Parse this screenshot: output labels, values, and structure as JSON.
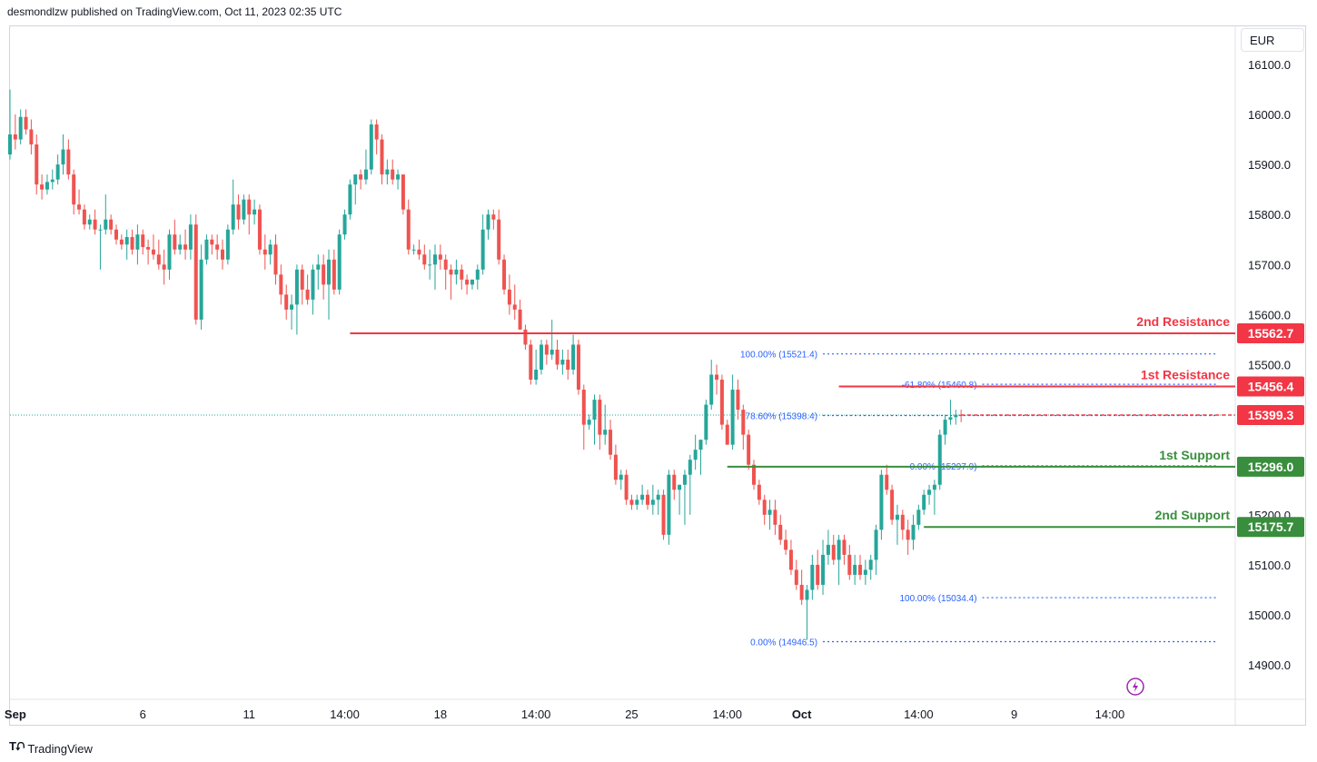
{
  "header": {
    "text": "desmondlzw published on TradingView.com, Oct 11, 2023 02:35 UTC"
  },
  "footer": {
    "brand": "TradingView"
  },
  "currency": "EUR",
  "colors": {
    "up": "#26a69a",
    "down": "#ef5350",
    "resistance": "#f23645",
    "support": "#388e3c",
    "fib": "#2962ff",
    "current": "#f23645"
  },
  "chart_data": {
    "type": "candlestick",
    "ylim": [
      14840,
      16150
    ],
    "y_ticks": [
      14900.0,
      15000.0,
      15100.0,
      15200.0,
      15300.0,
      15400.0,
      15500.0,
      15600.0,
      15700.0,
      15800.0,
      15900.0,
      16000.0,
      16100.0
    ],
    "x_ticks": [
      {
        "label": "Sep",
        "bar": 1
      },
      {
        "label": "6",
        "bar": 25
      },
      {
        "label": "11",
        "bar": 45
      },
      {
        "label": "14:00",
        "bar": 63
      },
      {
        "label": "18",
        "bar": 81
      },
      {
        "label": "14:00",
        "bar": 99
      },
      {
        "label": "25",
        "bar": 117
      },
      {
        "label": "14:00",
        "bar": 135
      },
      {
        "label": "Oct",
        "bar": 149
      },
      {
        "label": "14:00",
        "bar": 171
      },
      {
        "label": "9",
        "bar": 189
      },
      {
        "label": "14:00",
        "bar": 207
      }
    ],
    "candles": [
      [
        15920,
        16050,
        15910,
        15960
      ],
      [
        15960,
        16000,
        15930,
        15950
      ],
      [
        15950,
        16010,
        15940,
        15995
      ],
      [
        15995,
        16010,
        15960,
        15970
      ],
      [
        15970,
        15990,
        15920,
        15940
      ],
      [
        15940,
        15960,
        15840,
        15860
      ],
      [
        15860,
        15880,
        15830,
        15850
      ],
      [
        15850,
        15880,
        15840,
        15865
      ],
      [
        15865,
        15890,
        15850,
        15870
      ],
      [
        15870,
        15920,
        15860,
        15900
      ],
      [
        15900,
        15960,
        15880,
        15930
      ],
      [
        15930,
        15950,
        15870,
        15880
      ],
      [
        15880,
        15890,
        15800,
        15820
      ],
      [
        15820,
        15850,
        15800,
        15810
      ],
      [
        15810,
        15820,
        15770,
        15780
      ],
      [
        15780,
        15800,
        15770,
        15790
      ],
      [
        15790,
        15810,
        15760,
        15770
      ],
      [
        15770,
        15780,
        15690,
        15770
      ],
      [
        15770,
        15840,
        15760,
        15790
      ],
      [
        15790,
        15800,
        15760,
        15770
      ],
      [
        15770,
        15780,
        15740,
        15750
      ],
      [
        15750,
        15760,
        15730,
        15740
      ],
      [
        15740,
        15770,
        15710,
        15755
      ],
      [
        15755,
        15770,
        15720,
        15730
      ],
      [
        15730,
        15780,
        15700,
        15760
      ],
      [
        15760,
        15770,
        15720,
        15735
      ],
      [
        15735,
        15750,
        15700,
        15730
      ],
      [
        15730,
        15760,
        15710,
        15720
      ],
      [
        15720,
        15750,
        15690,
        15700
      ],
      [
        15700,
        15730,
        15660,
        15690
      ],
      [
        15690,
        15770,
        15670,
        15760
      ],
      [
        15760,
        15790,
        15720,
        15730
      ],
      [
        15730,
        15760,
        15720,
        15740
      ],
      [
        15740,
        15770,
        15710,
        15730
      ],
      [
        15730,
        15800,
        15710,
        15780
      ],
      [
        15780,
        15800,
        15580,
        15590
      ],
      [
        15590,
        15740,
        15570,
        15710
      ],
      [
        15710,
        15760,
        15700,
        15750
      ],
      [
        15750,
        15760,
        15720,
        15740
      ],
      [
        15740,
        15760,
        15710,
        15730
      ],
      [
        15730,
        15750,
        15690,
        15710
      ],
      [
        15710,
        15780,
        15700,
        15770
      ],
      [
        15770,
        15870,
        15760,
        15820
      ],
      [
        15820,
        15840,
        15770,
        15790
      ],
      [
        15790,
        15840,
        15780,
        15830
      ],
      [
        15830,
        15840,
        15760,
        15800
      ],
      [
        15800,
        15830,
        15780,
        15810
      ],
      [
        15810,
        15820,
        15720,
        15730
      ],
      [
        15730,
        15760,
        15690,
        15720
      ],
      [
        15720,
        15750,
        15700,
        15740
      ],
      [
        15740,
        15760,
        15660,
        15680
      ],
      [
        15680,
        15700,
        15620,
        15640
      ],
      [
        15640,
        15660,
        15590,
        15610
      ],
      [
        15610,
        15640,
        15570,
        15620
      ],
      [
        15620,
        15700,
        15560,
        15690
      ],
      [
        15690,
        15700,
        15620,
        15650
      ],
      [
        15650,
        15680,
        15620,
        15630
      ],
      [
        15630,
        15700,
        15600,
        15690
      ],
      [
        15690,
        15720,
        15650,
        15700
      ],
      [
        15700,
        15720,
        15630,
        15660
      ],
      [
        15660,
        15730,
        15590,
        15710
      ],
      [
        15710,
        15730,
        15640,
        15650
      ],
      [
        15650,
        15770,
        15640,
        15760
      ],
      [
        15760,
        15810,
        15750,
        15800
      ],
      [
        15800,
        15870,
        15790,
        15860
      ],
      [
        15860,
        15880,
        15820,
        15880
      ],
      [
        15880,
        15890,
        15850,
        15870
      ],
      [
        15870,
        15930,
        15860,
        15890
      ],
      [
        15890,
        15990,
        15880,
        15980
      ],
      [
        15980,
        15990,
        15920,
        15950
      ],
      [
        15950,
        15960,
        15860,
        15880
      ],
      [
        15880,
        15910,
        15860,
        15890
      ],
      [
        15890,
        15910,
        15860,
        15870
      ],
      [
        15870,
        15890,
        15850,
        15880
      ],
      [
        15880,
        15880,
        15800,
        15810
      ],
      [
        15810,
        15830,
        15720,
        15730
      ],
      [
        15730,
        15740,
        15720,
        15730
      ],
      [
        15730,
        15750,
        15710,
        15720
      ],
      [
        15720,
        15740,
        15690,
        15700
      ],
      [
        15700,
        15730,
        15670,
        15700
      ],
      [
        15700,
        15740,
        15650,
        15720
      ],
      [
        15720,
        15740,
        15690,
        15710
      ],
      [
        15710,
        15720,
        15650,
        15690
      ],
      [
        15690,
        15700,
        15630,
        15680
      ],
      [
        15680,
        15710,
        15660,
        15690
      ],
      [
        15690,
        15700,
        15650,
        15670
      ],
      [
        15670,
        15680,
        15640,
        15660
      ],
      [
        15660,
        15670,
        15650,
        15670
      ],
      [
        15670,
        15700,
        15650,
        15690
      ],
      [
        15690,
        15800,
        15680,
        15770
      ],
      [
        15770,
        15810,
        15750,
        15800
      ],
      [
        15800,
        15810,
        15770,
        15790
      ],
      [
        15790,
        15810,
        15700,
        15710
      ],
      [
        15710,
        15720,
        15640,
        15650
      ],
      [
        15650,
        15680,
        15600,
        15620
      ],
      [
        15620,
        15660,
        15590,
        15610
      ],
      [
        15610,
        15630,
        15580,
        15570
      ],
      [
        15570,
        15580,
        15530,
        15540
      ],
      [
        15540,
        15550,
        15460,
        15470
      ],
      [
        15470,
        15530,
        15460,
        15490
      ],
      [
        15490,
        15550,
        15480,
        15540
      ],
      [
        15540,
        15550,
        15500,
        15520
      ],
      [
        15520,
        15590,
        15510,
        15530
      ],
      [
        15530,
        15550,
        15490,
        15500
      ],
      [
        15500,
        15530,
        15480,
        15510
      ],
      [
        15510,
        15530,
        15470,
        15490
      ],
      [
        15490,
        15560,
        15480,
        15540
      ],
      [
        15540,
        15550,
        15440,
        15450
      ],
      [
        15450,
        15460,
        15330,
        15380
      ],
      [
        15380,
        15400,
        15370,
        15390
      ],
      [
        15390,
        15440,
        15340,
        15430
      ],
      [
        15430,
        15440,
        15330,
        15360
      ],
      [
        15360,
        15420,
        15340,
        15370
      ],
      [
        15370,
        15390,
        15310,
        15320
      ],
      [
        15320,
        15340,
        15260,
        15270
      ],
      [
        15270,
        15290,
        15250,
        15280
      ],
      [
        15280,
        15290,
        15220,
        15230
      ],
      [
        15230,
        15240,
        15210,
        15220
      ],
      [
        15220,
        15240,
        15210,
        15230
      ],
      [
        15230,
        15260,
        15220,
        15240
      ],
      [
        15240,
        15250,
        15210,
        15220
      ],
      [
        15220,
        15260,
        15200,
        15230
      ],
      [
        15230,
        15250,
        15200,
        15240
      ],
      [
        15240,
        15250,
        15150,
        15160
      ],
      [
        15160,
        15290,
        15140,
        15280
      ],
      [
        15280,
        15290,
        15230,
        15250
      ],
      [
        15250,
        15260,
        15200,
        15260
      ],
      [
        15260,
        15290,
        15180,
        15280
      ],
      [
        15280,
        15320,
        15200,
        15310
      ],
      [
        15310,
        15360,
        15290,
        15330
      ],
      [
        15330,
        15350,
        15280,
        15350
      ],
      [
        15350,
        15430,
        15340,
        15420
      ],
      [
        15420,
        15510,
        15410,
        15480
      ],
      [
        15480,
        15500,
        15440,
        15470
      ],
      [
        15470,
        15480,
        15370,
        15380
      ],
      [
        15380,
        15390,
        15340,
        15340
      ],
      [
        15340,
        15480,
        15330,
        15450
      ],
      [
        15450,
        15470,
        15390,
        15410
      ],
      [
        15410,
        15420,
        15330,
        15360
      ],
      [
        15360,
        15370,
        15290,
        15300
      ],
      [
        15300,
        15310,
        15250,
        15260
      ],
      [
        15260,
        15270,
        15220,
        15230
      ],
      [
        15230,
        15240,
        15180,
        15200
      ],
      [
        15200,
        15230,
        15170,
        15210
      ],
      [
        15210,
        15230,
        15160,
        15180
      ],
      [
        15180,
        15200,
        15140,
        15150
      ],
      [
        15150,
        15170,
        15120,
        15130
      ],
      [
        15130,
        15150,
        15080,
        15090
      ],
      [
        15090,
        15110,
        15050,
        15060
      ],
      [
        15060,
        15090,
        15020,
        15030
      ],
      [
        15030,
        15060,
        14950,
        15050
      ],
      [
        15050,
        15120,
        15030,
        15100
      ],
      [
        15100,
        15130,
        15050,
        15060
      ],
      [
        15060,
        15150,
        15040,
        15120
      ],
      [
        15120,
        15170,
        15100,
        15140
      ],
      [
        15140,
        15160,
        15100,
        15110
      ],
      [
        15110,
        15160,
        15060,
        15150
      ],
      [
        15150,
        15160,
        15100,
        15120
      ],
      [
        15120,
        15140,
        15070,
        15080
      ],
      [
        15080,
        15120,
        15060,
        15100
      ],
      [
        15100,
        15120,
        15070,
        15080
      ],
      [
        15080,
        15110,
        15060,
        15090
      ],
      [
        15090,
        15120,
        15070,
        15110
      ],
      [
        15110,
        15180,
        15080,
        15170
      ],
      [
        15170,
        15290,
        15150,
        15280
      ],
      [
        15280,
        15300,
        15240,
        15250
      ],
      [
        15250,
        15260,
        15180,
        15190
      ],
      [
        15190,
        15220,
        15140,
        15200
      ],
      [
        15200,
        15210,
        15150,
        15170
      ],
      [
        15170,
        15190,
        15120,
        15150
      ],
      [
        15150,
        15200,
        15130,
        15180
      ],
      [
        15180,
        15220,
        15170,
        15210
      ],
      [
        15210,
        15250,
        15200,
        15240
      ],
      [
        15240,
        15260,
        15220,
        15250
      ],
      [
        15250,
        15270,
        15200,
        15260
      ],
      [
        15260,
        15370,
        15250,
        15360
      ],
      [
        15360,
        15400,
        15340,
        15390
      ],
      [
        15390,
        15430,
        15380,
        15395
      ],
      [
        15395,
        15410,
        15380,
        15400
      ],
      [
        15400,
        15410,
        15385,
        15399
      ]
    ],
    "last_price": 15399.3,
    "levels": [
      {
        "label": "2nd Resistance",
        "price": 15562.7,
        "kind": "resistance",
        "start_bar": 64
      },
      {
        "label": "1st Resistance",
        "price": 15456.4,
        "kind": "resistance",
        "start_bar": 156
      },
      {
        "label": "1st Support",
        "price": 15296.0,
        "kind": "support",
        "start_bar": 135
      },
      {
        "label": "2nd Support",
        "price": 15175.7,
        "kind": "support",
        "start_bar": 172
      }
    ],
    "fib_labels": [
      {
        "text": "100.00% (15521.4)",
        "price": 15521.4,
        "start_bar": 153
      },
      {
        "text": "78.60% (15398.4)",
        "price": 15398.4,
        "start_bar": 153
      },
      {
        "text": "0.00% (14946.5)",
        "price": 14946.5,
        "start_bar": 153
      },
      {
        "text": "-61.80% (15460.8)",
        "price": 15460.8,
        "start_bar": 183
      },
      {
        "text": "0.00% (15297.9)",
        "price": 15297.9,
        "start_bar": 183
      },
      {
        "text": "100.00% (15034.4)",
        "price": 15034.4,
        "start_bar": 183
      }
    ]
  }
}
